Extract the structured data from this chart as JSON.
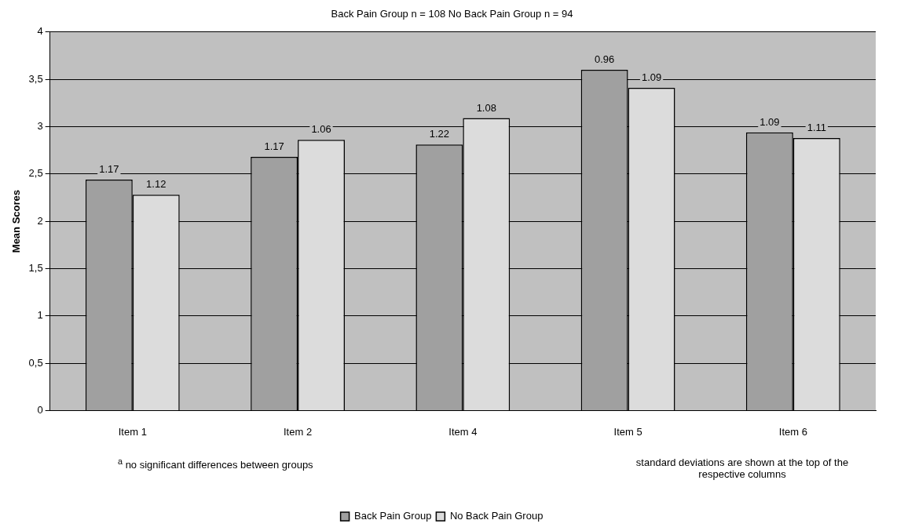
{
  "chart_data": {
    "type": "bar",
    "subtitle": "Back Pain Group n = 108  No Back Pain Group n = 94",
    "ylabel": "Mean Scores",
    "categories": [
      "Item 1",
      "Item 2",
      "Item 4",
      "Item 5",
      "Item 6"
    ],
    "series": [
      {
        "name": "Back Pain Group",
        "color": "#a0a0a0",
        "values": [
          2.44,
          2.68,
          2.81,
          3.6,
          2.94
        ]
      },
      {
        "name": "No Back Pain Group",
        "color": "#dcdcdc",
        "values": [
          2.28,
          2.86,
          3.09,
          3.41,
          2.88
        ]
      }
    ],
    "ylim": [
      0,
      4
    ],
    "yticks": [
      0,
      {
        "value": 0.5,
        "label": "0,5"
      },
      1,
      {
        "value": 1.5,
        "label": "1,5"
      },
      2,
      {
        "value": 2.5,
        "label": "2,5"
      },
      3,
      {
        "value": 3.5,
        "label": "3,5"
      },
      4
    ],
    "grid": "y",
    "legend": "bottom",
    "annotations": [
      "$^{a}$ no significant differences between groups",
      "standard deviations are shown at the top of the respective columns",
      {
        "text": "1.17",
        "x": "Item 1",
        "y": 2.44
      },
      {
        "text": "1.12",
        "x": "Item 1",
        "y": 2.28
      },
      {
        "text": "1.17",
        "x": "Item 2",
        "y": 2.68
      },
      {
        "text": "1.06",
        "x": "Item 2",
        "y": 2.86
      },
      {
        "text": "1.22",
        "x": "Item 4",
        "y": 2.81
      },
      {
        "text": "1.08",
        "x": "Item 4",
        "y": 3.09
      },
      {
        "text": "0.96",
        "x": "Item 5",
        "y": 3.6
      },
      {
        "text": "1.09",
        "x": "Item 5",
        "y": 3.41
      },
      {
        "text": "1.09",
        "x": "Item 6",
        "y": 2.94
      },
      {
        "text": "1.11",
        "x": "Item 6",
        "y": 2.88
      }
    ]
  }
}
